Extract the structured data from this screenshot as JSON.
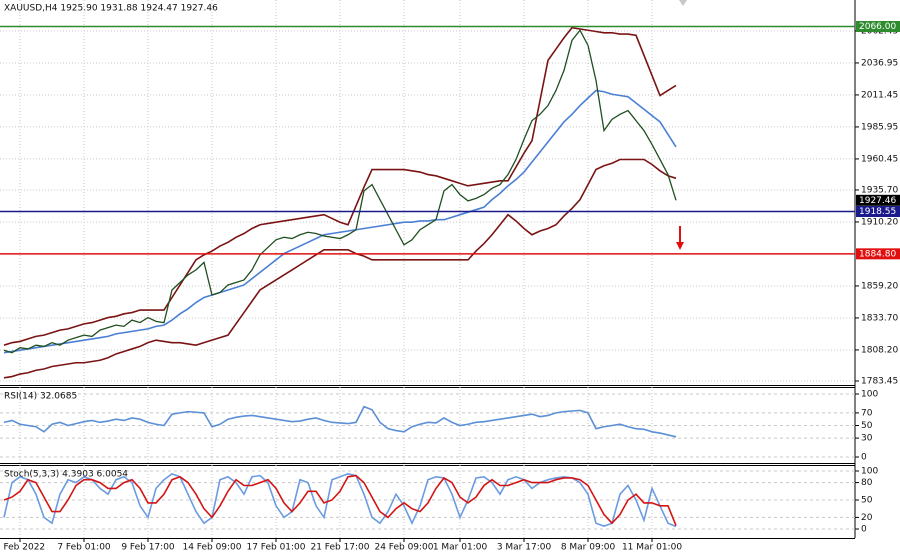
{
  "chart_data": [
    {
      "type": "line",
      "title": "XAUUSD,H4  1925.90 1931.88 1924.47 1927.46",
      "grid": true,
      "categories": [
        null,
        null,
        "2 Feb 2022",
        null,
        null,
        null,
        null,
        null,
        null,
        null,
        "7 Feb 01:00",
        null,
        null,
        null,
        null,
        null,
        null,
        null,
        "9 Feb 17:00",
        null,
        null,
        null,
        null,
        null,
        null,
        null,
        "14 Feb 09:00",
        null,
        null,
        null,
        null,
        null,
        null,
        null,
        "17 Feb 01:00",
        null,
        null,
        null,
        null,
        null,
        null,
        null,
        "21 Feb 17:00",
        null,
        null,
        null,
        null,
        null,
        null,
        null,
        "24 Feb 09:00",
        null,
        null,
        null,
        null,
        null,
        null,
        "1 Mar 01:00",
        null,
        null,
        null,
        null,
        null,
        null,
        null,
        "3 Mar 17:00",
        null,
        null,
        null,
        null,
        null,
        null,
        null,
        "8 Mar 09:00",
        null,
        null,
        null,
        null,
        null,
        null,
        null,
        "11 Mar 01:00",
        null,
        null,
        null
      ],
      "ylim": [
        1780.26,
        2087.12
      ],
      "yticks": [
        2062.45,
        2036.95,
        2011.45,
        1985.95,
        1960.45,
        {
          "value": 1935.7,
          "label": "1935.70"
        },
        {
          "value": 1910.2,
          "label": "1910.20"
        },
        {
          "value": 1859.2,
          "label": "1859.20"
        },
        {
          "value": 1833.7,
          "label": "1833.70"
        },
        {
          "value": 1808.2,
          "label": "1808.20"
        },
        1783.45
      ],
      "series": [
        {
          "name": "Upper band",
          "color": "#7a1414",
          "values": [
            1812,
            1814,
            1815,
            1817,
            1819,
            1820,
            1822,
            1824,
            1825,
            1827,
            1829,
            1830,
            1832,
            1834,
            1835,
            1837,
            1838,
            1840,
            1840,
            1840,
            1840,
            1850,
            1860,
            1870,
            1880,
            1884,
            1887,
            1891,
            1894,
            1898,
            1901,
            1905,
            1908,
            1909,
            1910,
            1911,
            1912,
            1913,
            1914,
            1915,
            1916,
            1913,
            1910,
            1908,
            1923,
            1938,
            1952,
            1952,
            1952,
            1952,
            1952,
            1951,
            1950,
            1948,
            1947,
            1945,
            1943,
            1941,
            1939,
            1940,
            1941,
            1942,
            1943,
            1943,
            1954,
            1965,
            1975,
            2007,
            2039,
            2048,
            2057,
            2065,
            2064,
            2063,
            2062,
            2061,
            2061,
            2060,
            2060,
            2059,
            2043,
            2027,
            2011,
            2015,
            2019
          ]
        },
        {
          "name": "Lower band",
          "color": "#7a1414",
          "values": [
            1786,
            1787,
            1789,
            1790,
            1792,
            1793,
            1795,
            1796,
            1797,
            1798,
            1798,
            1799,
            1800,
            1802,
            1805,
            1807,
            1809,
            1811,
            1814,
            1816,
            1815,
            1814,
            1814,
            1813,
            1812,
            1814,
            1816,
            1818,
            1820,
            1829,
            1838,
            1847,
            1856,
            1860,
            1864,
            1868,
            1872,
            1876,
            1880,
            1884,
            1888,
            1888,
            1888,
            1888,
            1885,
            1883,
            1880,
            1880,
            1880,
            1880,
            1880,
            1880,
            1880,
            1880,
            1880,
            1880,
            1880,
            1880,
            1880,
            1887,
            1893,
            1900,
            1908,
            1916,
            1911,
            1905,
            1900,
            1903,
            1905,
            1908,
            1915,
            1921,
            1928,
            1940,
            1952,
            1955,
            1957,
            1960,
            1960,
            1960,
            1960,
            1956,
            1951,
            1947,
            1945
          ]
        },
        {
          "name": "Moving average",
          "color": "#4a7fd4",
          "values": [
            1806,
            1807,
            1808,
            1809,
            1810,
            1811,
            1812,
            1813,
            1814,
            1815,
            1816,
            1817,
            1818,
            1819,
            1821,
            1822,
            1823,
            1824,
            1825,
            1827,
            1828,
            1832,
            1837,
            1841,
            1846,
            1850,
            1852,
            1854,
            1856,
            1858,
            1860,
            1865,
            1870,
            1875,
            1880,
            1885,
            1888,
            1891,
            1894,
            1897,
            1900,
            1901,
            1902,
            1903,
            1904,
            1905,
            1906,
            1907,
            1908,
            1909,
            1910,
            1910,
            1911,
            1911,
            1912,
            1912,
            1914,
            1916,
            1918,
            1920,
            1922,
            1928,
            1933,
            1939,
            1944,
            1950,
            1958,
            1966,
            1974,
            1982,
            1990,
            1996,
            2003,
            2009,
            2015,
            2014,
            2012,
            2011,
            2010,
            2005,
            2000,
            1995,
            1990,
            1980,
            1970
          ]
        },
        {
          "name": "Close",
          "color": "#1f4f1f",
          "values": [
            1808,
            1806,
            1810,
            1809,
            1812,
            1811,
            1814,
            1812,
            1816,
            1818,
            1820,
            1819,
            1824,
            1826,
            1828,
            1827,
            1832,
            1830,
            1834,
            1831,
            1830,
            1856,
            1862,
            1868,
            1872,
            1878,
            1852,
            1854,
            1860,
            1862,
            1864,
            1872,
            1884,
            1890,
            1896,
            1898,
            1897,
            1900,
            1902,
            1901,
            1899,
            1898,
            1897,
            1900,
            1904,
            1935,
            1940,
            1928,
            1916,
            1904,
            1892,
            1896,
            1904,
            1908,
            1912,
            1935,
            1940,
            1932,
            1927,
            1929,
            1932,
            1937,
            1940,
            1948,
            1960,
            1976,
            1991,
            1996,
            2003,
            2015,
            2031,
            2055,
            2063,
            2051,
            2023,
            1983,
            1992,
            1996,
            1999,
            1991,
            1983,
            1972,
            1960,
            1948,
            1927.46
          ]
        }
      ],
      "levels": [
        {
          "value": 2066,
          "label": "2066.00",
          "color": "#2e8b2e",
          "line": true
        },
        {
          "value": 1927.46,
          "label": "1927.46",
          "color": "#000000",
          "line": false
        },
        {
          "value": 1918.55,
          "label": "1918.55",
          "color": "#1a1a8c",
          "line": true
        },
        {
          "value": 1884.8,
          "label": "1884.80",
          "color": "#e01010",
          "line": true
        }
      ]
    },
    {
      "type": "line",
      "title": "RSI(14) 32.0685",
      "grid": true,
      "ylim": [
        -9.5,
        109.5
      ],
      "yticks": [
        100,
        70,
        50,
        30,
        0
      ],
      "series": [
        {
          "name": "RSI",
          "color": "#5b8fd6",
          "values": [
            55,
            58,
            52,
            50,
            48,
            40,
            52,
            55,
            50,
            53,
            56,
            58,
            55,
            57,
            60,
            58,
            62,
            60,
            55,
            52,
            50,
            68,
            70,
            72,
            71,
            70,
            48,
            52,
            60,
            63,
            65,
            66,
            64,
            62,
            60,
            58,
            56,
            57,
            60,
            62,
            58,
            55,
            54,
            53,
            55,
            80,
            75,
            55,
            45,
            42,
            40,
            48,
            52,
            55,
            54,
            62,
            55,
            50,
            52,
            55,
            56,
            58,
            60,
            62,
            64,
            66,
            68,
            64,
            66,
            70,
            72,
            73,
            74,
            70,
            45,
            48,
            50,
            52,
            48,
            45,
            44,
            40,
            38,
            35,
            32.0685
          ]
        }
      ]
    },
    {
      "type": "line",
      "title": "Stoch(5,3,3) 4.3903 6.0054",
      "grid": true,
      "ylim": [
        -15.5,
        108.6
      ],
      "yticks": [
        100,
        80,
        50,
        20,
        0
      ],
      "series": [
        {
          "name": "%K",
          "color": "#6b9be0",
          "values": [
            20,
            80,
            90,
            85,
            60,
            20,
            10,
            60,
            85,
            80,
            90,
            85,
            70,
            60,
            85,
            90,
            80,
            40,
            20,
            70,
            85,
            95,
            90,
            60,
            30,
            10,
            20,
            85,
            90,
            80,
            60,
            90,
            92,
            80,
            40,
            20,
            30,
            85,
            80,
            40,
            20,
            85,
            90,
            95,
            92,
            60,
            20,
            10,
            30,
            60,
            40,
            10,
            40,
            85,
            90,
            88,
            60,
            20,
            50,
            88,
            90,
            80,
            60,
            85,
            90,
            85,
            70,
            80,
            85,
            88,
            90,
            88,
            80,
            60,
            10,
            5,
            10,
            60,
            75,
            50,
            15,
            70,
            40,
            10,
            4.3903
          ]
        },
        {
          "name": "%D",
          "color": "#d41414",
          "values": [
            50,
            55,
            65,
            85,
            80,
            55,
            30,
            30,
            50,
            75,
            85,
            85,
            80,
            70,
            70,
            80,
            85,
            70,
            45,
            45,
            60,
            85,
            90,
            80,
            60,
            35,
            20,
            40,
            65,
            85,
            75,
            75,
            80,
            85,
            70,
            45,
            30,
            45,
            65,
            65,
            45,
            50,
            65,
            90,
            92,
            80,
            55,
            30,
            20,
            35,
            45,
            35,
            30,
            45,
            70,
            88,
            80,
            55,
            45,
            55,
            75,
            85,
            75,
            75,
            80,
            85,
            80,
            80,
            80,
            85,
            88,
            88,
            85,
            75,
            50,
            25,
            10,
            25,
            50,
            60,
            45,
            45,
            40,
            40,
            6.0054
          ]
        }
      ]
    }
  ]
}
